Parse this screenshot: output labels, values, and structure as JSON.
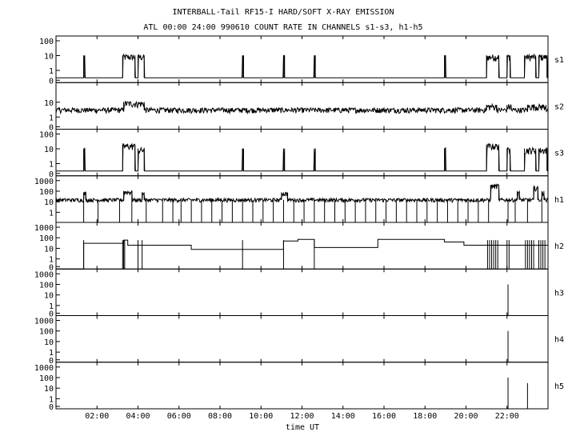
{
  "title_line1": "INTERBALL-Tail RF15-I HARD/SOFT X-RAY EMISSION",
  "title_line2": "ATL 00:00 24:00 990610  COUNT RATE IN CHANNELS s1-s3, h1-h5",
  "chart_data": {
    "type": "line",
    "title": "INTERBALL-Tail RF15-I HARD/SOFT X-RAY EMISSION",
    "subtitle": "ATL 00:00 24:00 990610  COUNT RATE IN CHANNELS s1-s3, h1-h5",
    "xlabel": "time UT",
    "x_unit": "hours UT",
    "xlim": [
      0,
      24
    ],
    "x_ticks": [
      2,
      4,
      6,
      8,
      10,
      12,
      14,
      16,
      18,
      20,
      22
    ],
    "x_tick_labels": [
      "02:00",
      "04:00",
      "06:00",
      "08:00",
      "10:00",
      "12:00",
      "14:00",
      "16:00",
      "18:00",
      "20:00",
      "22:00"
    ],
    "y_scale": "log",
    "panels": [
      {
        "name": "s1",
        "ymax": 100,
        "tick_labels": [
          "100",
          "10",
          "1",
          "0"
        ],
        "baseline": 0,
        "bursts": [
          {
            "x": 1.35,
            "x2": 1.4,
            "level": 8
          },
          {
            "x": 3.25,
            "x2": 3.85,
            "level": 8
          },
          {
            "x": 4.0,
            "x2": 4.3,
            "level": 8
          },
          {
            "x": 9.1,
            "x2": 9.15,
            "level": 8
          },
          {
            "x": 11.1,
            "x2": 11.15,
            "level": 8
          },
          {
            "x": 12.6,
            "x2": 12.65,
            "level": 8
          },
          {
            "x": 18.95,
            "x2": 19.0,
            "level": 8
          },
          {
            "x": 21.0,
            "x2": 21.6,
            "level": 8
          },
          {
            "x": 22.0,
            "x2": 22.15,
            "level": 8
          },
          {
            "x": 22.85,
            "x2": 23.4,
            "level": 8
          },
          {
            "x": 23.55,
            "x2": 23.95,
            "level": 8
          }
        ]
      },
      {
        "name": "s2",
        "ymax": 100,
        "tick_labels": [
          "10",
          "1",
          "0"
        ],
        "baseline": 3,
        "bursts": [
          {
            "x": 3.3,
            "x2": 4.3,
            "level": 8
          },
          {
            "x": 21.0,
            "x2": 21.5,
            "level": 5
          },
          {
            "x": 22.0,
            "x2": 22.2,
            "level": 5
          },
          {
            "x": 23.0,
            "x2": 23.9,
            "level": 5
          }
        ]
      },
      {
        "name": "s3",
        "ymax": 100,
        "tick_labels": [
          "100",
          "10",
          "1",
          "0"
        ],
        "baseline": 0,
        "bursts": [
          {
            "x": 1.35,
            "x2": 1.4,
            "level": 8
          },
          {
            "x": 3.25,
            "x2": 3.85,
            "level": 15
          },
          {
            "x": 4.0,
            "x2": 4.3,
            "level": 8
          },
          {
            "x": 9.1,
            "x2": 9.15,
            "level": 8
          },
          {
            "x": 11.1,
            "x2": 11.15,
            "level": 8
          },
          {
            "x": 12.6,
            "x2": 12.65,
            "level": 8
          },
          {
            "x": 18.95,
            "x2": 19.0,
            "level": 8
          },
          {
            "x": 21.0,
            "x2": 21.6,
            "level": 15
          },
          {
            "x": 22.0,
            "x2": 22.15,
            "level": 8
          },
          {
            "x": 22.85,
            "x2": 23.4,
            "level": 8
          },
          {
            "x": 23.55,
            "x2": 23.95,
            "level": 8
          }
        ]
      },
      {
        "name": "h1",
        "ymax": 1000,
        "tick_labels": [
          "1000",
          "100",
          "10",
          "1"
        ],
        "baseline": 15,
        "bursts": [
          {
            "x": 1.35,
            "x2": 1.45,
            "level": 60
          },
          {
            "x": 3.3,
            "x2": 3.7,
            "level": 80
          },
          {
            "x": 4.2,
            "x2": 4.3,
            "level": 60
          },
          {
            "x": 11.0,
            "x2": 11.3,
            "level": 60
          },
          {
            "x": 21.2,
            "x2": 21.6,
            "level": 300
          },
          {
            "x": 22.5,
            "x2": 22.6,
            "level": 80
          },
          {
            "x": 23.3,
            "x2": 23.5,
            "level": 200
          },
          {
            "x": 23.7,
            "x2": 23.8,
            "level": 80
          }
        ],
        "dropouts": [
          1.35,
          2.05,
          3.1,
          3.7,
          4.4,
          5.2,
          5.7,
          6.1,
          6.6,
          7.1,
          7.6,
          8.1,
          8.6,
          9.1,
          9.6,
          10.1,
          10.6,
          11.1,
          11.6,
          12.1,
          12.6,
          13.1,
          13.6,
          14.1,
          14.6,
          15.1,
          15.6,
          16.1,
          16.6,
          17.1,
          17.6,
          18.1,
          18.6,
          19.1,
          19.6,
          20.1,
          20.6,
          21.1,
          22.05,
          22.4,
          23.0,
          23.7
        ]
      },
      {
        "name": "h2",
        "ymax": 1000,
        "tick_labels": [
          "1000",
          "100",
          "10",
          "1",
          "0"
        ],
        "steps": [
          {
            "x": 0,
            "v": 0
          },
          {
            "x": 1.35,
            "v": 30
          },
          {
            "x": 3.3,
            "v": 60
          },
          {
            "x": 3.5,
            "v": 20
          },
          {
            "x": 4.2,
            "v": 20
          },
          {
            "x": 6.6,
            "v": 8
          },
          {
            "x": 9.1,
            "v": 8
          },
          {
            "x": 11.1,
            "v": 50
          },
          {
            "x": 11.8,
            "v": 70
          },
          {
            "x": 12.6,
            "v": 12
          },
          {
            "x": 15.7,
            "v": 70
          },
          {
            "x": 18.95,
            "v": 40
          },
          {
            "x": 19.9,
            "v": 20
          },
          {
            "x": 21.0,
            "v": 20
          }
        ],
        "spikes_down": [
          1.35,
          3.25,
          3.3,
          3.35,
          4.0,
          4.2,
          9.1,
          11.1,
          12.6,
          21.05,
          21.15,
          21.25,
          21.35,
          21.45,
          21.55,
          22.0,
          22.1,
          22.9,
          23.0,
          23.1,
          23.2,
          23.3,
          23.55,
          23.65,
          23.75,
          23.85
        ]
      },
      {
        "name": "h3",
        "ymax": 1000,
        "tick_labels": [
          "1000",
          "100",
          "10",
          "1",
          "0"
        ],
        "spikes": [
          {
            "x": 22.05,
            "v": 100
          }
        ]
      },
      {
        "name": "h4",
        "ymax": 1000,
        "tick_labels": [
          "1000",
          "100",
          "10",
          "1",
          "0"
        ],
        "spikes": [
          {
            "x": 22.05,
            "v": 100
          }
        ]
      },
      {
        "name": "h5",
        "ymax": 1000,
        "tick_labels": [
          "1000",
          "100",
          "10",
          "1",
          "0"
        ],
        "spikes": [
          {
            "x": 22.05,
            "v": 100
          },
          {
            "x": 23.0,
            "v": 30
          }
        ]
      }
    ]
  }
}
